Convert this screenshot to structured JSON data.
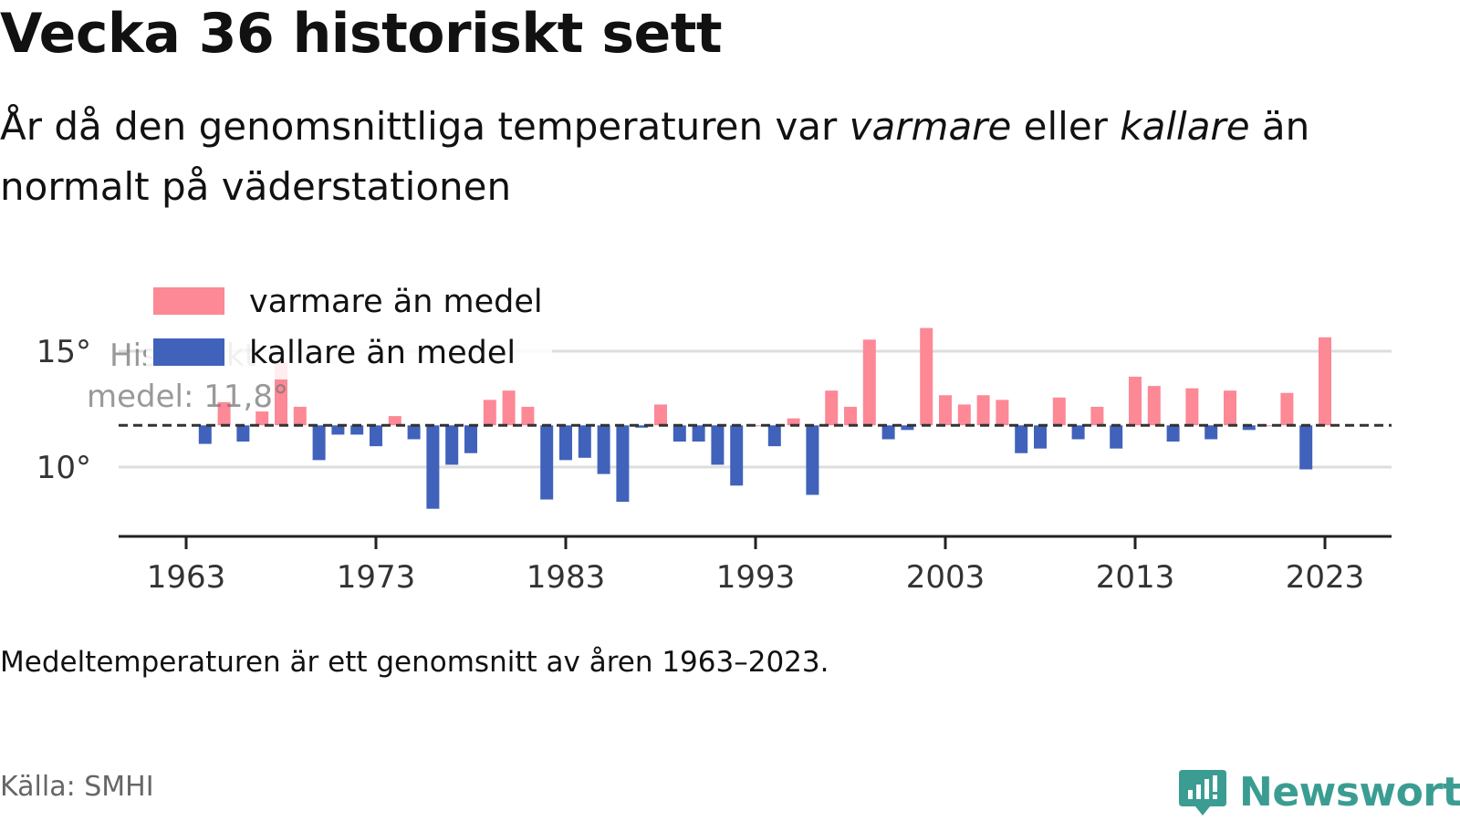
{
  "title": "Vecka 36 historiskt sett",
  "subtitle": {
    "part1": "År då den genomsnittliga temperaturen var ",
    "warm_word": "varmare",
    "part2": " eller ",
    "cold_word": "kallare",
    "part3": " än normalt på väderstationen"
  },
  "note": "Medeltemperaturen är ett genomsnitt av åren 1963–2023.",
  "source": "Källa: SMHI",
  "brand": "Newsworthy",
  "colors": {
    "warm": "#fd8896",
    "cold": "#4062bb",
    "mean_line": "#333333",
    "grid": "#dddddd",
    "brand": "#3b9d92"
  },
  "chart_data": {
    "type": "bar",
    "baseline": 11.8,
    "baseline_label": [
      "Historiskt",
      "medel: 11,8°"
    ],
    "ylim": [
      7,
      17.5
    ],
    "yticks": [
      10,
      15
    ],
    "ytick_labels": [
      "10°",
      "15°"
    ],
    "xticks": [
      1963,
      1973,
      1983,
      1993,
      2003,
      2013,
      2023
    ],
    "legend": [
      {
        "key": "warm",
        "label": "varmare än medel"
      },
      {
        "key": "cold",
        "label": "kallare än medel"
      }
    ],
    "legend_position": "top-left",
    "grid": true,
    "x": [
      1964,
      1965,
      1966,
      1967,
      1968,
      1969,
      1970,
      1971,
      1972,
      1973,
      1974,
      1975,
      1976,
      1977,
      1978,
      1979,
      1980,
      1981,
      1982,
      1983,
      1984,
      1985,
      1986,
      1987,
      1988,
      1989,
      1990,
      1991,
      1992,
      1993,
      1994,
      1995,
      1996,
      1997,
      1998,
      1999,
      2000,
      2001,
      2002,
      2003,
      2004,
      2005,
      2006,
      2007,
      2008,
      2009,
      2010,
      2011,
      2012,
      2013,
      2014,
      2015,
      2016,
      2017,
      2018,
      2019,
      2020,
      2021,
      2022,
      2023
    ],
    "values": [
      11.0,
      12.8,
      11.1,
      12.4,
      14.5,
      12.6,
      10.3,
      11.4,
      11.4,
      10.9,
      12.2,
      11.2,
      8.2,
      10.1,
      10.6,
      12.9,
      13.3,
      12.6,
      8.6,
      10.3,
      10.4,
      9.7,
      8.5,
      11.7,
      12.7,
      11.1,
      11.1,
      10.1,
      9.2,
      11.8,
      10.9,
      12.1,
      8.8,
      13.3,
      12.6,
      15.5,
      11.2,
      11.6,
      16.0,
      13.1,
      12.7,
      13.1,
      12.9,
      10.6,
      10.8,
      13.0,
      11.2,
      12.6,
      10.8,
      13.9,
      13.5,
      11.1,
      13.4,
      11.2,
      13.3,
      11.6,
      11.8,
      13.2,
      9.9,
      15.6
    ]
  }
}
